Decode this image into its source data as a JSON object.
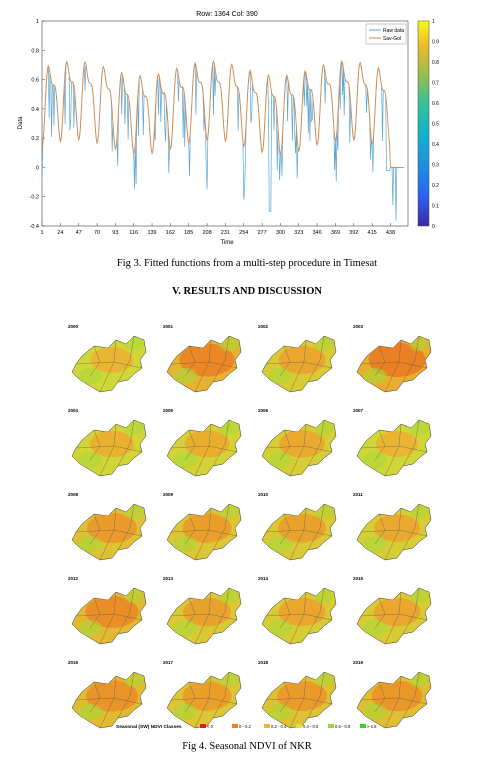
{
  "fig3": {
    "chart_data": {
      "type": "line",
      "title": "Row: 1364  Col: 390",
      "xlabel": "Time",
      "ylabel": "Data",
      "xlim": [
        1,
        460
      ],
      "ylim": [
        -0.4,
        1
      ],
      "xticks": [
        1,
        24,
        47,
        70,
        93,
        116,
        139,
        162,
        185,
        208,
        231,
        254,
        277,
        300,
        323,
        346,
        369,
        392,
        415,
        438
      ],
      "yticks": [
        -0.4,
        -0.2,
        0,
        0.2,
        0.4,
        0.6,
        0.8,
        1
      ],
      "grid": false,
      "legend": "top-right",
      "series": [
        {
          "name": "Raw data",
          "color": "#5aa5d6"
        },
        {
          "name": "Sav-Gol",
          "color": "#d98a4a"
        }
      ],
      "colorbar": {
        "range": [
          0,
          1
        ],
        "ticks": [
          "0",
          "0.1",
          "0.2",
          "0.3",
          "0.4",
          "0.5",
          "0.6",
          "0.7",
          "0.8",
          "0.9",
          "1"
        ]
      }
    },
    "caption": "Fig 3. Fitted functions from a multi-step procedure in Timesat"
  },
  "section_heading": "V.     RESULTS AND DISCUSSION",
  "fig4": {
    "years": [
      "2000",
      "2001",
      "2002",
      "2003",
      "2004",
      "2005",
      "2006",
      "2007",
      "2008",
      "2009",
      "2010",
      "2011",
      "2012",
      "2013",
      "2014",
      "2015",
      "2016",
      "2017",
      "2018",
      "2019"
    ],
    "map_tone": [
      0.15,
      0.75,
      0.35,
      0.85,
      0.2,
      0.25,
      0.3,
      0.15,
      0.5,
      0.45,
      0.4,
      0.3,
      0.65,
      0.4,
      0.35,
      0.35,
      0.6,
      0.45,
      0.5,
      0.55
    ],
    "legend_title": "Seasonal (SW) NDVI Classes",
    "legend_classes": [
      {
        "label": "< 0",
        "color": "#e3191c"
      },
      {
        "label": "0 - 0.2",
        "color": "#f07f1f"
      },
      {
        "label": "0.2 - 0.4",
        "color": "#f4b433"
      },
      {
        "label": "0.4 - 0.6",
        "color": "#d9e338"
      },
      {
        "label": "0.6 - 0.8",
        "color": "#9ad53a"
      },
      {
        "label": "> 0.8",
        "color": "#3bd133"
      }
    ],
    "caption": "Fig 4. Seasonal NDVI of NKR"
  }
}
